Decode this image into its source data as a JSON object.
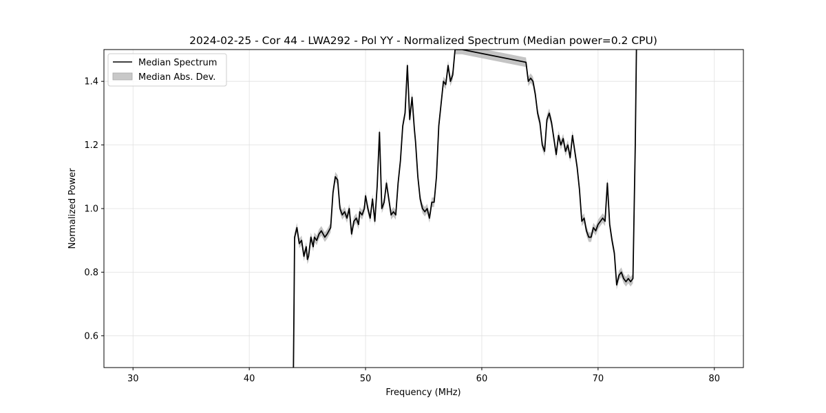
{
  "chart_data": {
    "type": "line",
    "title": "2024-02-25 - Cor 44 - LWA292 - Pol YY - Normalized Spectrum (Median power=0.2 CPU)",
    "xlabel": "Frequency (MHz)",
    "ylabel": "Normalized Power",
    "xlim": [
      27.5,
      82.5
    ],
    "ylim": [
      0.5,
      1.5
    ],
    "xticks": [
      30,
      40,
      50,
      60,
      70,
      80
    ],
    "yticks": [
      0.6,
      0.8,
      1.0,
      1.2,
      1.4
    ],
    "xtick_labels": [
      "30",
      "40",
      "50",
      "60",
      "70",
      "80"
    ],
    "ytick_labels": [
      "0.6",
      "0.8",
      "1.0",
      "1.2",
      "1.4"
    ],
    "grid": true,
    "legend": {
      "placement": "top-left",
      "entries": [
        {
          "label": "Median Spectrum",
          "kind": "line"
        },
        {
          "label": "Median Abs. Dev.",
          "kind": "band"
        }
      ]
    },
    "colors": {
      "line": "#000000",
      "band": "#b0b0b0"
    },
    "series": [
      {
        "name": "Median Spectrum",
        "band_halfwidth": 0.015,
        "x": [
          43.8,
          43.85,
          43.9,
          44.1,
          44.3,
          44.5,
          44.7,
          44.9,
          45.0,
          45.1,
          45.3,
          45.5,
          45.6,
          45.8,
          46.0,
          46.2,
          46.5,
          46.7,
          47.0,
          47.2,
          47.4,
          47.6,
          47.8,
          48.0,
          48.2,
          48.4,
          48.6,
          48.8,
          49.0,
          49.2,
          49.4,
          49.5,
          49.7,
          49.9,
          50.0,
          50.2,
          50.4,
          50.6,
          50.8,
          51.0,
          51.2,
          51.4,
          51.6,
          51.8,
          52.0,
          52.2,
          52.4,
          52.6,
          52.8,
          53.0,
          53.2,
          53.4,
          53.6,
          53.8,
          54.0,
          54.2,
          54.3,
          54.5,
          54.7,
          54.9,
          55.1,
          55.3,
          55.5,
          55.7,
          55.9,
          56.1,
          56.3,
          56.5,
          56.7,
          56.9,
          57.1,
          57.3,
          57.5,
          57.7,
          57.9,
          58.1,
          58.3,
          63.8,
          64.0,
          64.2,
          64.4,
          64.6,
          64.8,
          65.0,
          65.2,
          65.4,
          65.6,
          65.8,
          66.0,
          66.2,
          66.4,
          66.6,
          66.8,
          67.0,
          67.2,
          67.4,
          67.6,
          67.8,
          68.0,
          68.2,
          68.4,
          68.6,
          68.8,
          69.0,
          69.2,
          69.4,
          69.6,
          69.8,
          70.0,
          70.2,
          70.4,
          70.6,
          70.8,
          71.0,
          71.2,
          71.4,
          71.6,
          71.8,
          72.0,
          72.2,
          72.4,
          72.6,
          72.8,
          73.0,
          73.2,
          73.3,
          73.35
        ],
        "y": [
          0.5,
          0.7,
          0.91,
          0.94,
          0.89,
          0.9,
          0.85,
          0.88,
          0.84,
          0.85,
          0.91,
          0.88,
          0.91,
          0.9,
          0.92,
          0.93,
          0.91,
          0.92,
          0.94,
          1.05,
          1.1,
          1.09,
          1.0,
          0.98,
          0.99,
          0.97,
          1.0,
          0.92,
          0.96,
          0.97,
          0.95,
          0.99,
          0.98,
          1.0,
          1.04,
          1.0,
          0.97,
          1.03,
          0.96,
          1.07,
          1.24,
          1.0,
          1.02,
          1.08,
          1.03,
          0.98,
          0.99,
          0.98,
          1.08,
          1.15,
          1.26,
          1.3,
          1.45,
          1.28,
          1.35,
          1.25,
          1.21,
          1.1,
          1.03,
          1.0,
          0.99,
          1.0,
          0.97,
          1.02,
          1.02,
          1.1,
          1.26,
          1.33,
          1.4,
          1.39,
          1.45,
          1.4,
          1.42,
          1.5,
          1.5,
          1.5,
          1.5,
          1.46,
          1.4,
          1.41,
          1.4,
          1.36,
          1.3,
          1.27,
          1.2,
          1.18,
          1.28,
          1.3,
          1.27,
          1.22,
          1.17,
          1.23,
          1.2,
          1.22,
          1.18,
          1.2,
          1.16,
          1.23,
          1.18,
          1.13,
          1.06,
          0.96,
          0.97,
          0.93,
          0.91,
          0.91,
          0.94,
          0.93,
          0.95,
          0.96,
          0.97,
          0.96,
          1.08,
          0.95,
          0.9,
          0.86,
          0.76,
          0.79,
          0.8,
          0.78,
          0.77,
          0.78,
          0.77,
          0.78,
          1.2,
          1.5,
          1.5
        ]
      }
    ]
  }
}
